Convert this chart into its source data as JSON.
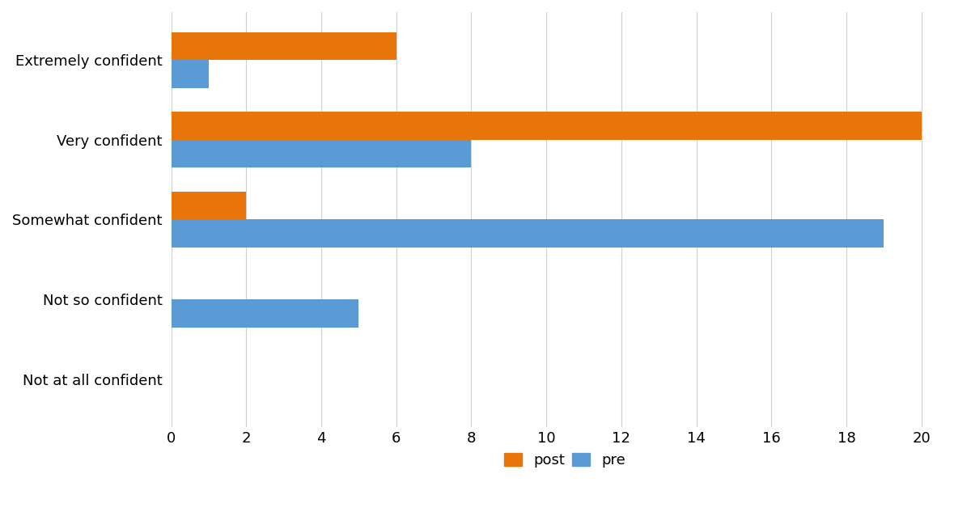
{
  "categories": [
    "Not at all confident",
    "Not so confident",
    "Somewhat confident",
    "Very confident",
    "Extremely confident"
  ],
  "post_values": [
    0,
    0,
    2,
    20,
    6
  ],
  "pre_values": [
    0,
    5,
    19,
    8,
    1
  ],
  "post_color": "#E8750A",
  "pre_color": "#5B9BD5",
  "xlim": [
    0,
    21
  ],
  "xticks": [
    0,
    2,
    4,
    6,
    8,
    10,
    12,
    14,
    16,
    18,
    20
  ],
  "bar_height": 0.35,
  "background_color": "#FFFFFF",
  "legend_labels": [
    "post",
    "pre"
  ],
  "tick_fontsize": 13,
  "legend_fontsize": 13,
  "category_fontsize": 13
}
